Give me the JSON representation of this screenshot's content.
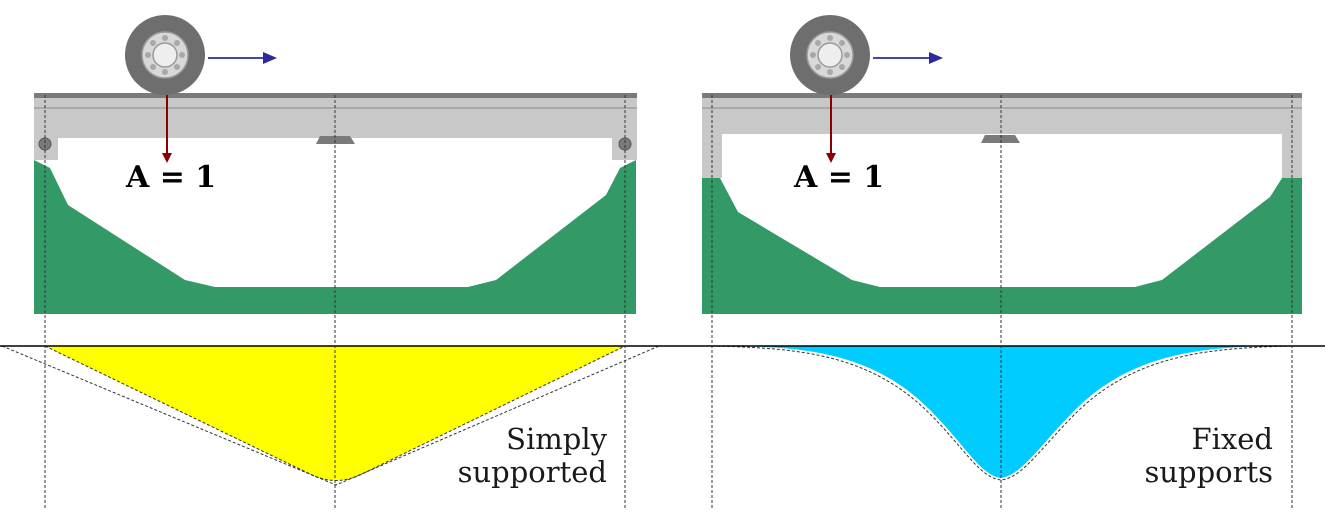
{
  "left_panel": {
    "load_label": "A = 1",
    "caption_line1": "Simply",
    "caption_line2": "supported"
  },
  "right_panel": {
    "load_label": "A = 1",
    "caption_line1": "Fixed",
    "caption_line2": "supports"
  },
  "colors": {
    "deck": "#c8c8c8",
    "deck_top": "#7a7a7a",
    "terrain": "#339966",
    "influence_simply": "#ffff00",
    "influence_fixed": "#00ccff",
    "load_arrow": "#8b0000",
    "motion_arrow": "#2b2b9b",
    "tire": "#6e6e6e",
    "rim": "#d8d8d8"
  }
}
